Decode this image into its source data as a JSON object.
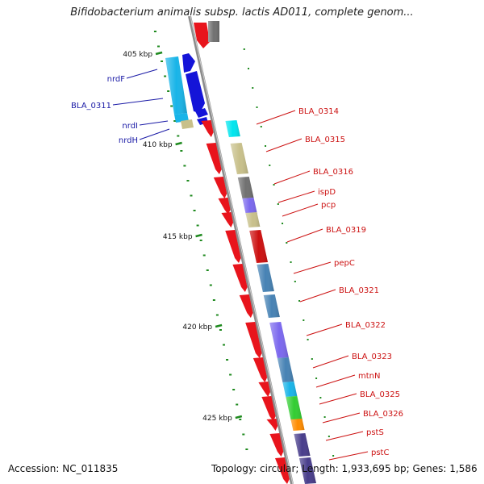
{
  "title": "Bifidobacterium animalis subsp. lactis AD011, complete genom...",
  "ticks": [
    {
      "label": "405 kbp",
      "pos": 405
    },
    {
      "label": "410 kbp",
      "pos": 410
    },
    {
      "label": "415 kbp",
      "pos": 415
    },
    {
      "label": "420 kbp",
      "pos": 420
    },
    {
      "label": "425 kbp",
      "pos": 425
    }
  ],
  "left_labels": [
    {
      "text": "nrdF",
      "color": "#1a1aa6"
    },
    {
      "text": "BLA_0311",
      "color": "#1a1aa6"
    },
    {
      "text": "nrdI",
      "color": "#1a1aa6"
    },
    {
      "text": "nrdH",
      "color": "#1a1aa6"
    }
  ],
  "right_labels": [
    {
      "text": "BLA_0314",
      "color": "#cc1111"
    },
    {
      "text": "BLA_0315",
      "color": "#cc1111"
    },
    {
      "text": "BLA_0316",
      "color": "#cc1111"
    },
    {
      "text": "ispD",
      "color": "#cc1111"
    },
    {
      "text": "pcp",
      "color": "#cc1111"
    },
    {
      "text": "BLA_0319",
      "color": "#cc1111"
    },
    {
      "text": "pepC",
      "color": "#cc1111"
    },
    {
      "text": "BLA_0321",
      "color": "#cc1111"
    },
    {
      "text": "BLA_0322",
      "color": "#cc1111"
    },
    {
      "text": "BLA_0323",
      "color": "#cc1111"
    },
    {
      "text": "mtnN",
      "color": "#cc1111"
    },
    {
      "text": "BLA_0325",
      "color": "#cc1111"
    },
    {
      "text": "BLA_0326",
      "color": "#cc1111"
    },
    {
      "text": "pstS",
      "color": "#cc1111"
    },
    {
      "text": "pstC",
      "color": "#cc1111"
    }
  ],
  "colors": {
    "backbone": "#8c8c8c",
    "cds_forward": "#e8141c",
    "gene_outer_blue": "#1414d8",
    "tick_green": "#1f8a1f"
  },
  "footer": {
    "accession": "Accession: NC_011835",
    "topology": "Topology: circular; Length: 1,933,695 bp; Genes: 1,586"
  }
}
